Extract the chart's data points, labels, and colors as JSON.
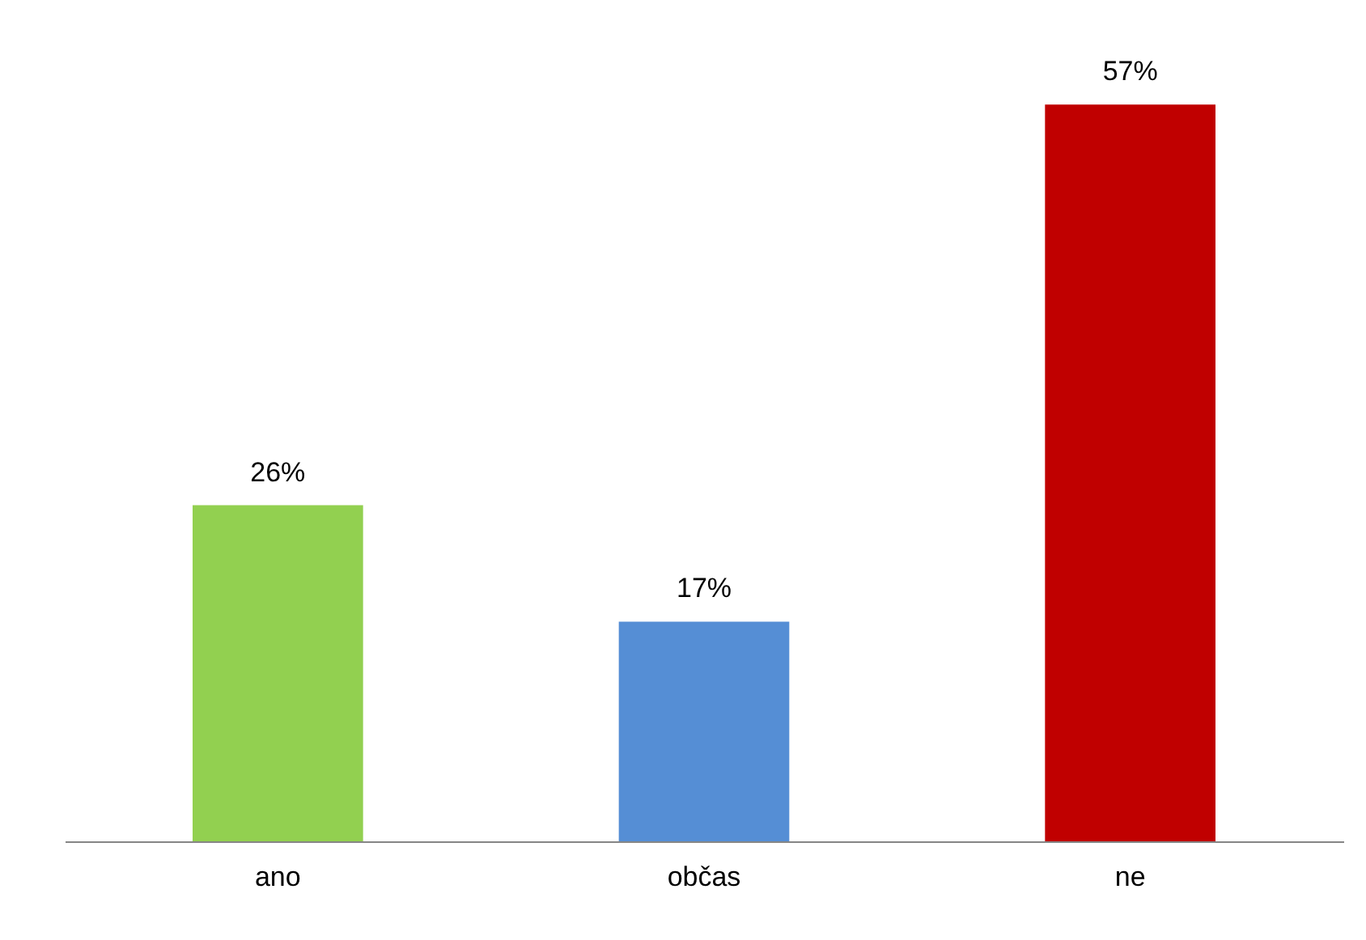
{
  "chart_data": {
    "type": "bar",
    "categories": [
      "ano",
      "občas",
      "ne"
    ],
    "values": [
      26,
      17,
      57
    ],
    "colors": [
      "#92d050",
      "#558ed5",
      "#c00000"
    ],
    "value_labels": [
      "26%",
      "17%",
      "57%"
    ],
    "grid": false
  }
}
